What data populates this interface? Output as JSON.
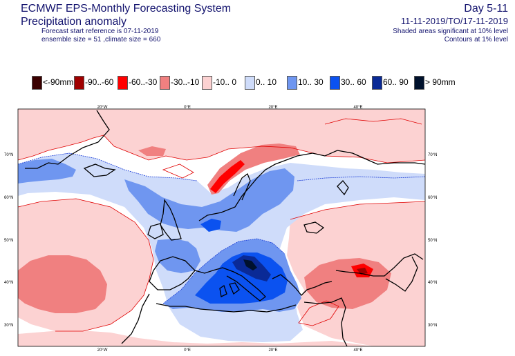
{
  "header": {
    "title_line1": "ECMWF EPS-Monthly Forecasting System",
    "title_line2": "Precipitation anomaly",
    "forecast_ref": "Forecast start reference is 07-11-2019",
    "ensemble": "ensemble size = 51  ,climate size = 660",
    "day_range": "Day 5-11",
    "date_range": "11-11-2019/TO/17-11-2019",
    "shading_note": "Shaded areas significant at 10% level",
    "contour_note": "Contours at 1% level"
  },
  "legend": [
    {
      "label": "<-90mm",
      "color": "#3a0000"
    },
    {
      "label": "-90..-60",
      "color": "#a00000"
    },
    {
      "label": "-60..-30",
      "color": "#ff0000"
    },
    {
      "label": "-30..-10",
      "color": "#f08080"
    },
    {
      "label": "-10..  0",
      "color": "#fcd2d2"
    },
    {
      "label": "0.. 10",
      "color": "#cfdcfa"
    },
    {
      "label": "10.. 30",
      "color": "#6f96f0"
    },
    {
      "label": "30.. 60",
      "color": "#0b52f0"
    },
    {
      "label": "60.. 90",
      "color": "#0a2a96"
    },
    {
      "label": "> 90mm",
      "color": "#00112c"
    }
  ],
  "map": {
    "lon_labels": [
      "20°W",
      "0°E",
      "20°E",
      "40°E"
    ],
    "lat_labels": [
      "70°N",
      "60°N",
      "50°N",
      "40°N",
      "30°N"
    ]
  }
}
